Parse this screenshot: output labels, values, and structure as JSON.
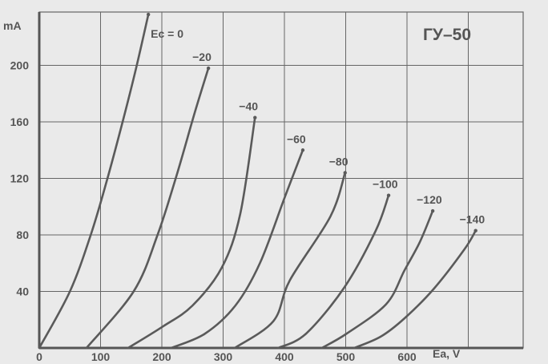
{
  "chart_data": {
    "type": "line",
    "title": "ГУ–50",
    "xlabel": "Ea, V",
    "ylabel": "mA",
    "xlim": [
      0,
      790
    ],
    "ylim": [
      0,
      240
    ],
    "grid": true,
    "xticks": [
      "0",
      "100",
      "200",
      "300",
      "400",
      "500",
      "600"
    ],
    "yticks": [
      "40",
      "80",
      "120",
      "160",
      "200"
    ],
    "line_color": "#5a5a5a",
    "series": [
      {
        "name": "Ec = 0",
        "x": [
          0,
          50,
          84,
          110,
          136,
          158,
          178
        ],
        "y": [
          0,
          40,
          80,
          118,
          160,
          198,
          236
        ]
      },
      {
        "name": "−20",
        "x": [
          77,
          154,
          193,
          224,
          254,
          276
        ],
        "y": [
          0,
          40,
          80,
          122,
          167,
          198
        ]
      },
      {
        "name": "−40",
        "x": [
          145,
          201,
          250,
          298,
          328,
          352
        ],
        "y": [
          0,
          15,
          30,
          57,
          95,
          163
        ]
      },
      {
        "name": "−60",
        "x": [
          215,
          270,
          320,
          360,
          400,
          430
        ],
        "y": [
          0,
          10,
          30,
          60,
          106,
          140
        ]
      },
      {
        "name": "−80",
        "x": [
          319,
          382,
          409,
          475,
          499
        ],
        "y": [
          0,
          19,
          48,
          93,
          124
        ]
      },
      {
        "name": "−100",
        "x": [
          390,
          435,
          498,
          549,
          570
        ],
        "y": [
          0,
          10,
          43,
          83,
          108
        ]
      },
      {
        "name": "−120",
        "x": [
          461,
          501,
          566,
          596,
          621,
          642
        ],
        "y": [
          0,
          10,
          31,
          55,
          75,
          97
        ]
      },
      {
        "name": "−140",
        "x": [
          514,
          557,
          596,
          644,
          694,
          712
        ],
        "y": [
          0,
          8,
          21,
          42,
          70,
          83
        ]
      }
    ]
  }
}
